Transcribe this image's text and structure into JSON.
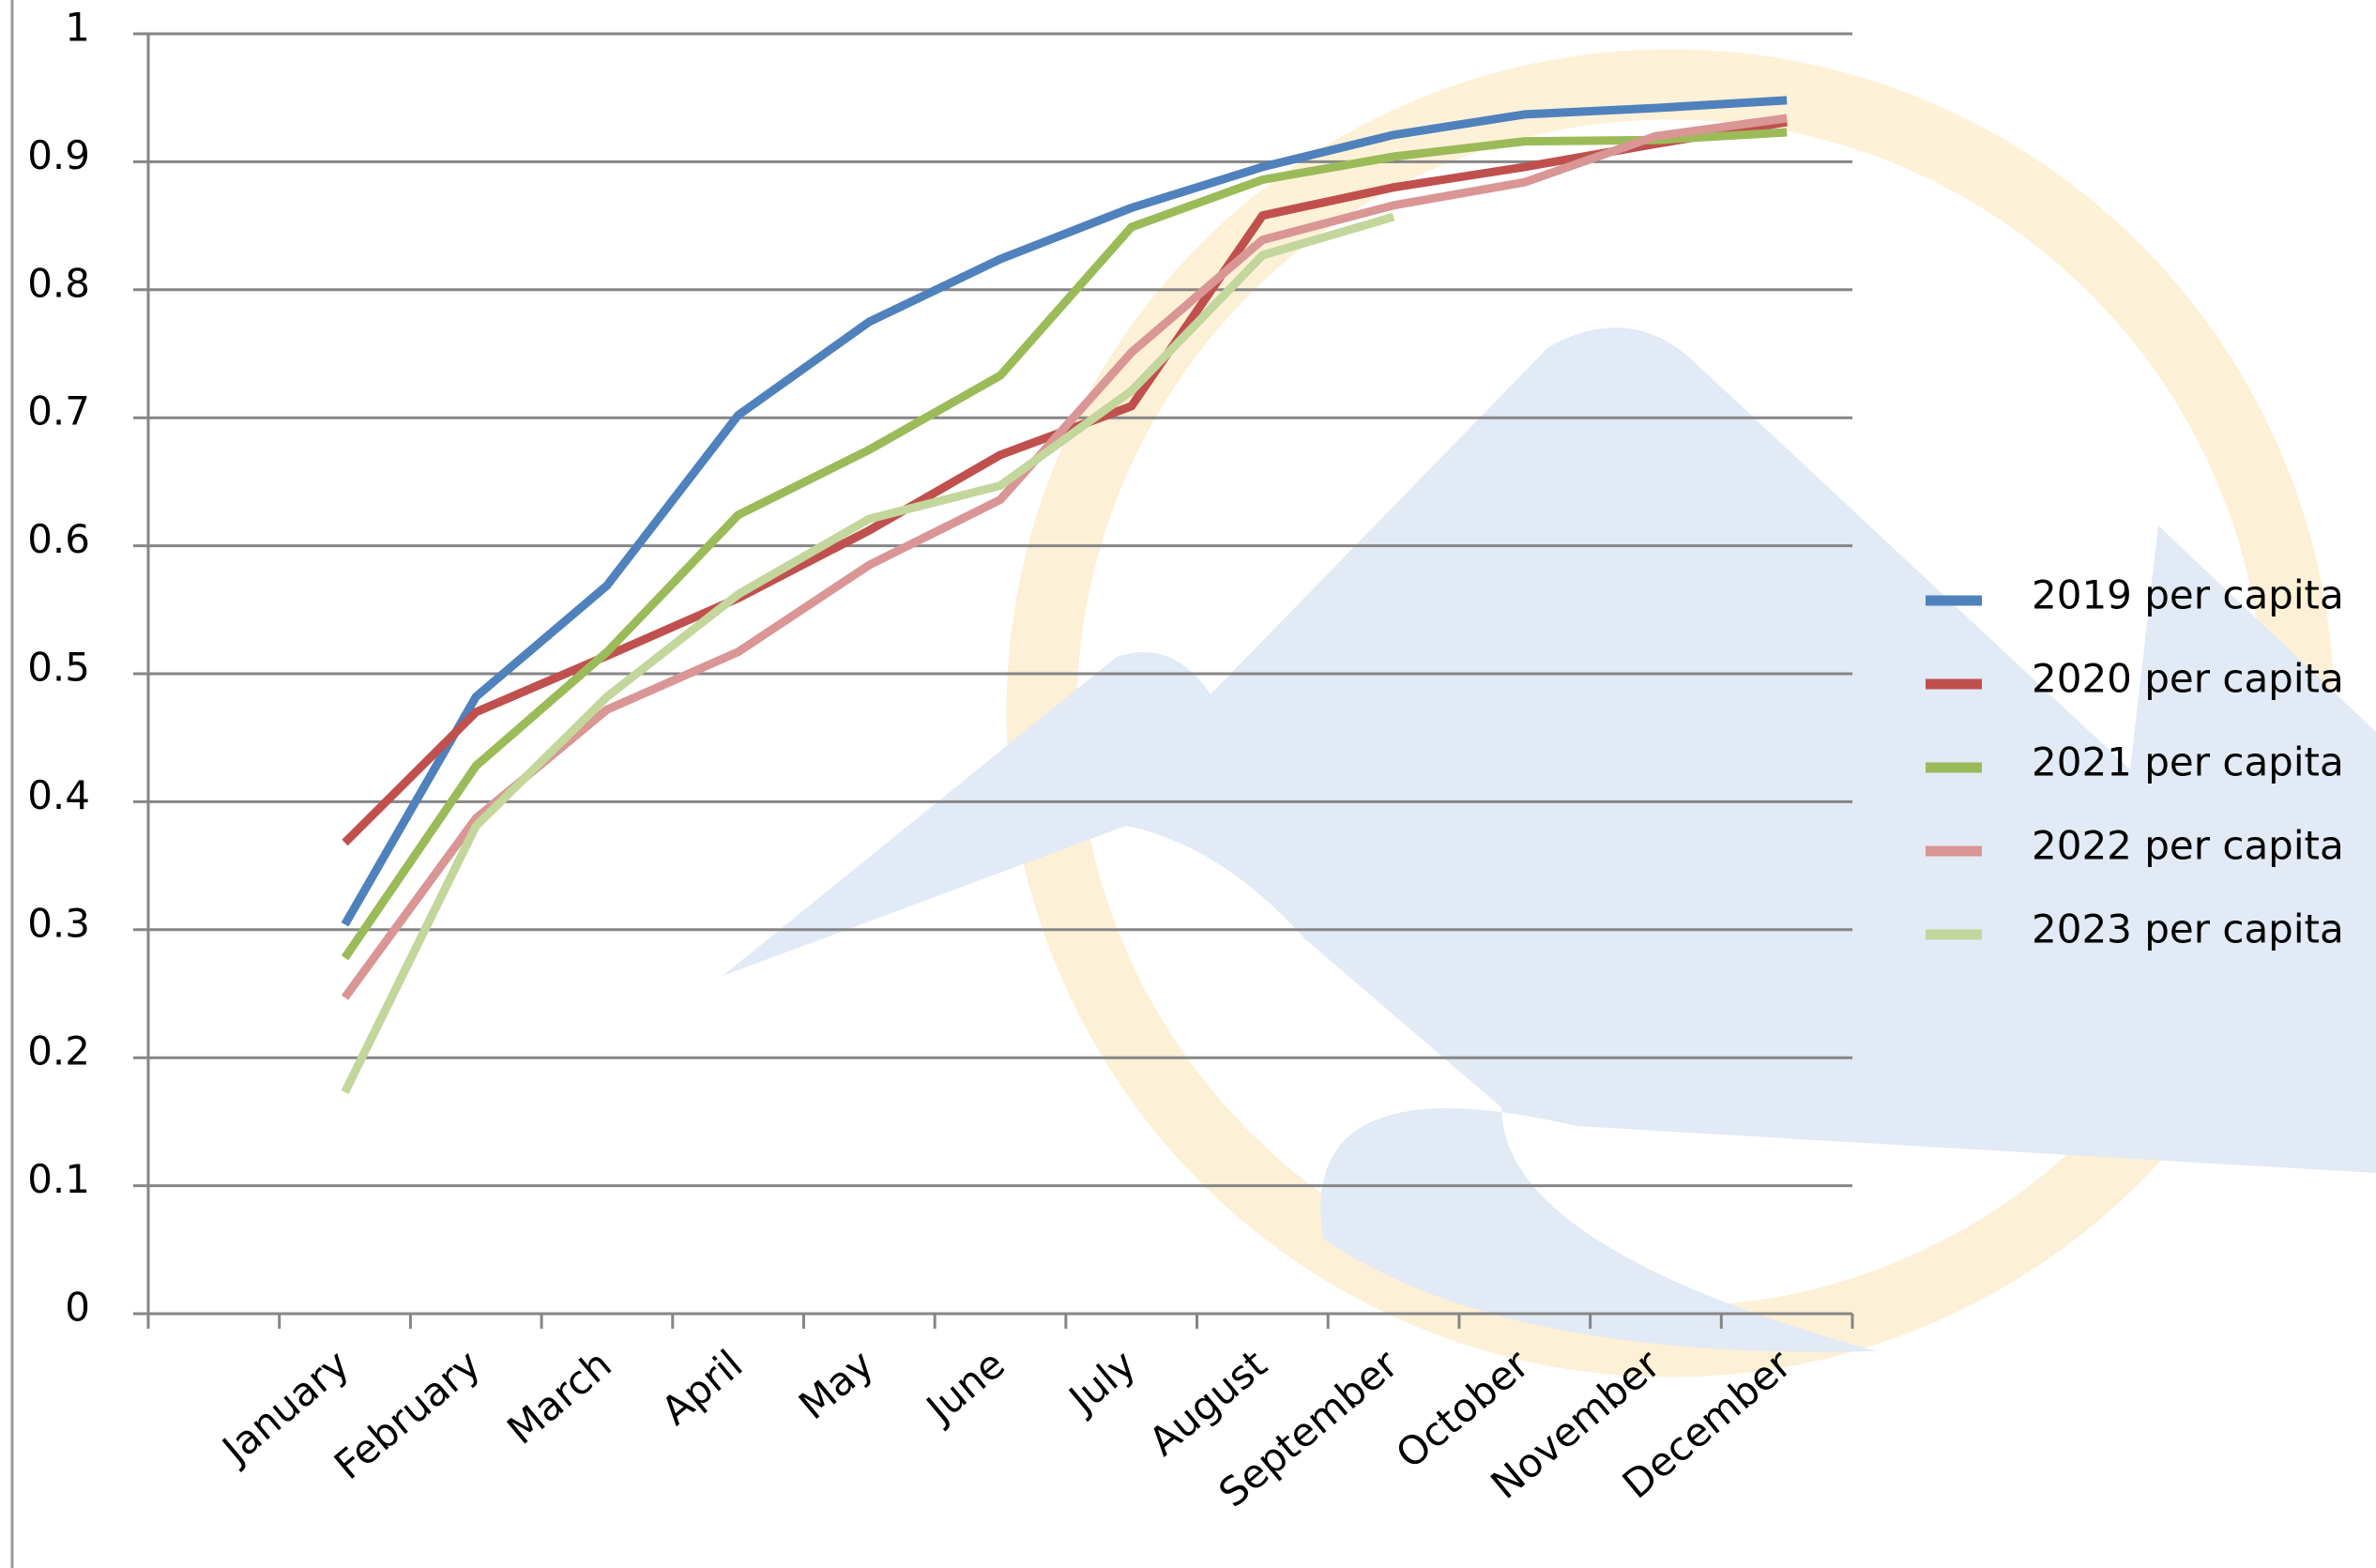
{
  "chart_data": {
    "type": "line",
    "categories": [
      null,
      "January",
      "February",
      "March",
      "April",
      "May",
      "June",
      "July",
      "August",
      "September",
      "October",
      "November",
      "December"
    ],
    "series": [
      {
        "name": "2019 per capita",
        "color": "#4f81bd",
        "values": [
          null,
          0.304,
          0.482,
          0.569,
          0.702,
          0.775,
          0.824,
          0.864,
          0.896,
          0.921,
          0.937,
          0.942,
          0.948
        ]
      },
      {
        "name": "2020 per capita",
        "color": "#c0504d",
        "values": [
          null,
          0.368,
          0.47,
          0.514,
          0.559,
          0.612,
          0.671,
          0.709,
          0.858,
          0.88,
          0.896,
          0.914,
          0.931
        ]
      },
      {
        "name": "2021 per capita",
        "color": "#9bbb59",
        "values": [
          null,
          0.278,
          0.428,
          0.517,
          0.624,
          0.675,
          0.733,
          0.849,
          0.886,
          0.904,
          0.916,
          0.917,
          0.923
        ]
      },
      {
        "name": "2022 per capita",
        "color": "#d99694",
        "values": [
          null,
          0.247,
          0.387,
          0.472,
          0.517,
          0.585,
          0.636,
          0.751,
          0.839,
          0.866,
          0.884,
          0.92,
          0.934
        ]
      },
      {
        "name": "2023 per capita",
        "color": "#c3d69b",
        "values": [
          null,
          0.173,
          0.381,
          0.482,
          0.562,
          0.621,
          0.647,
          0.721,
          0.827,
          0.857,
          null,
          null,
          null
        ]
      }
    ],
    "ylim": [
      0,
      1
    ],
    "yticks": [
      0,
      0.1,
      0.2,
      0.3,
      0.4,
      0.5,
      0.6,
      0.7,
      0.8,
      0.9,
      1
    ],
    "grid": true,
    "legend": "right"
  }
}
